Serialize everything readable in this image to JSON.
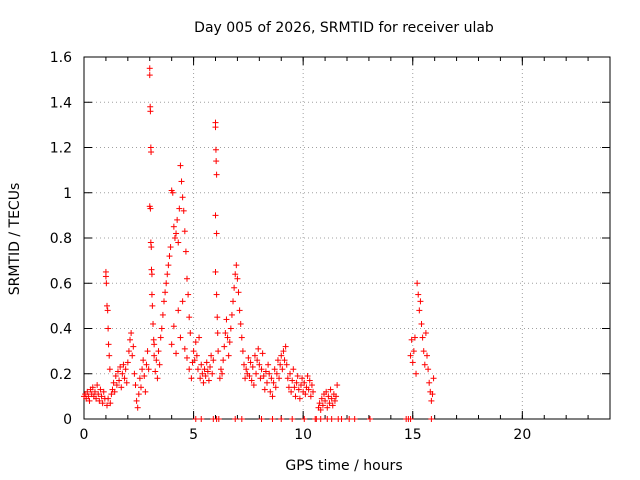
{
  "chart_data": {
    "type": "scatter",
    "title": "Day 005 of 2026, SRMTID for receiver ulab",
    "xlabel": "GPS time / hours",
    "ylabel": "SRMTID / TECUs",
    "xlim": [
      0,
      24
    ],
    "ylim": [
      0,
      1.6
    ],
    "x_ticks": [
      0,
      5,
      10,
      15,
      20
    ],
    "y_ticks": [
      0,
      0.2,
      0.4,
      0.6,
      0.8,
      1,
      1.2,
      1.4,
      1.6
    ],
    "x_tick_labels": [
      "0",
      "5",
      "10",
      "15",
      "20"
    ],
    "y_tick_labels": [
      "0",
      "0.2",
      "0.4",
      "0.6",
      "0.8",
      "1",
      "1.2",
      "1.4",
      "1.6"
    ],
    "grid": true,
    "legend": "none",
    "marker": "+",
    "colors": {
      "points": "#ff0000",
      "grid": "#a0a0a0",
      "axes": "#000000"
    },
    "series": [
      {
        "name": "SRMTID",
        "points": [
          [
            0.0,
            0.1
          ],
          [
            0.05,
            0.11
          ],
          [
            0.1,
            0.09
          ],
          [
            0.15,
            0.12
          ],
          [
            0.2,
            0.1
          ],
          [
            0.25,
            0.08
          ],
          [
            0.3,
            0.13
          ],
          [
            0.35,
            0.11
          ],
          [
            0.4,
            0.14
          ],
          [
            0.45,
            0.1
          ],
          [
            0.5,
            0.12
          ],
          [
            0.55,
            0.09
          ],
          [
            0.6,
            0.15
          ],
          [
            0.65,
            0.11
          ],
          [
            0.7,
            0.08
          ],
          [
            0.75,
            0.13
          ],
          [
            0.8,
            0.1
          ],
          [
            0.85,
            0.07
          ],
          [
            0.9,
            0.12
          ],
          [
            0.95,
            0.09
          ],
          [
            1.0,
            0.65
          ],
          [
            1.0,
            0.63
          ],
          [
            1.02,
            0.6
          ],
          [
            1.05,
            0.5
          ],
          [
            1.08,
            0.48
          ],
          [
            1.1,
            0.4
          ],
          [
            1.12,
            0.33
          ],
          [
            1.15,
            0.28
          ],
          [
            1.18,
            0.22
          ],
          [
            1.05,
            0.06
          ],
          [
            1.1,
            0.09
          ],
          [
            1.2,
            0.07
          ],
          [
            1.25,
            0.11
          ],
          [
            1.3,
            0.13
          ],
          [
            1.35,
            0.16
          ],
          [
            1.4,
            0.12
          ],
          [
            1.45,
            0.19
          ],
          [
            1.5,
            0.15
          ],
          [
            1.55,
            0.21
          ],
          [
            1.6,
            0.17
          ],
          [
            1.65,
            0.23
          ],
          [
            1.7,
            0.14
          ],
          [
            1.75,
            0.2
          ],
          [
            1.8,
            0.24
          ],
          [
            1.85,
            0.18
          ],
          [
            1.9,
            0.22
          ],
          [
            1.95,
            0.16
          ],
          [
            2.0,
            0.25
          ],
          [
            2.05,
            0.3
          ],
          [
            2.1,
            0.35
          ],
          [
            2.15,
            0.38
          ],
          [
            2.2,
            0.28
          ],
          [
            2.25,
            0.32
          ],
          [
            2.3,
            0.2
          ],
          [
            2.35,
            0.15
          ],
          [
            2.4,
            0.08
          ],
          [
            2.45,
            0.05
          ],
          [
            2.5,
            0.11
          ],
          [
            2.55,
            0.18
          ],
          [
            2.6,
            0.14
          ],
          [
            2.65,
            0.22
          ],
          [
            2.7,
            0.26
          ],
          [
            2.75,
            0.19
          ],
          [
            2.8,
            0.12
          ],
          [
            2.85,
            0.24
          ],
          [
            2.9,
            0.3
          ],
          [
            2.95,
            0.22
          ],
          [
            3.0,
            1.55
          ],
          [
            3.0,
            1.52
          ],
          [
            3.02,
            1.38
          ],
          [
            3.03,
            1.36
          ],
          [
            3.05,
            1.2
          ],
          [
            3.06,
            1.18
          ],
          [
            3.0,
            0.94
          ],
          [
            3.03,
            0.93
          ],
          [
            3.05,
            0.78
          ],
          [
            3.07,
            0.76
          ],
          [
            3.08,
            0.66
          ],
          [
            3.1,
            0.64
          ],
          [
            3.1,
            0.55
          ],
          [
            3.12,
            0.5
          ],
          [
            3.15,
            0.42
          ],
          [
            3.18,
            0.35
          ],
          [
            3.2,
            0.28
          ],
          [
            3.2,
            0.33
          ],
          [
            3.25,
            0.21
          ],
          [
            3.3,
            0.26
          ],
          [
            3.35,
            0.18
          ],
          [
            3.4,
            0.3
          ],
          [
            3.45,
            0.24
          ],
          [
            3.5,
            0.36
          ],
          [
            3.55,
            0.4
          ],
          [
            3.6,
            0.46
          ],
          [
            3.65,
            0.52
          ],
          [
            3.7,
            0.56
          ],
          [
            3.75,
            0.6
          ],
          [
            3.8,
            0.64
          ],
          [
            3.85,
            0.68
          ],
          [
            3.9,
            0.72
          ],
          [
            3.95,
            0.76
          ],
          [
            4.0,
            1.01
          ],
          [
            4.05,
            1.0
          ],
          [
            4.1,
            0.85
          ],
          [
            4.15,
            0.8
          ],
          [
            4.2,
            0.82
          ],
          [
            4.25,
            0.88
          ],
          [
            4.3,
            0.78
          ],
          [
            4.35,
            0.93
          ],
          [
            4.4,
            1.12
          ],
          [
            4.45,
            1.05
          ],
          [
            4.5,
            0.98
          ],
          [
            4.55,
            0.92
          ],
          [
            4.6,
            0.83
          ],
          [
            4.65,
            0.74
          ],
          [
            4.7,
            0.62
          ],
          [
            4.75,
            0.55
          ],
          [
            4.8,
            0.45
          ],
          [
            4.85,
            0.38
          ],
          [
            4.0,
            0.33
          ],
          [
            4.1,
            0.41
          ],
          [
            4.2,
            0.29
          ],
          [
            4.3,
            0.48
          ],
          [
            4.4,
            0.36
          ],
          [
            4.5,
            0.52
          ],
          [
            4.6,
            0.31
          ],
          [
            4.7,
            0.27
          ],
          [
            4.8,
            0.22
          ],
          [
            4.9,
            0.18
          ],
          [
            4.95,
            0.25
          ],
          [
            5.0,
            0.3
          ],
          [
            5.05,
            0.26
          ],
          [
            5.1,
            0.34
          ],
          [
            5.15,
            0.28
          ],
          [
            5.2,
            0.22
          ],
          [
            5.25,
            0.36
          ],
          [
            5.3,
            0.18
          ],
          [
            5.35,
            0.24
          ],
          [
            5.4,
            0.2
          ],
          [
            5.45,
            0.16
          ],
          [
            5.5,
            0.22
          ],
          [
            5.55,
            0.19
          ],
          [
            5.6,
            0.25
          ],
          [
            5.65,
            0.21
          ],
          [
            5.7,
            0.17
          ],
          [
            5.75,
            0.23
          ],
          [
            5.8,
            0.28
          ],
          [
            5.85,
            0.2
          ],
          [
            5.9,
            0.26
          ],
          [
            6.0,
            1.31
          ],
          [
            6.0,
            1.29
          ],
          [
            6.02,
            1.19
          ],
          [
            6.03,
            1.14
          ],
          [
            6.05,
            1.08
          ],
          [
            6.0,
            0.9
          ],
          [
            6.05,
            0.82
          ],
          [
            6.0,
            0.65
          ],
          [
            6.05,
            0.55
          ],
          [
            6.08,
            0.45
          ],
          [
            6.1,
            0.38
          ],
          [
            6.12,
            0.3
          ],
          [
            6.2,
            0.18
          ],
          [
            6.25,
            0.22
          ],
          [
            6.3,
            0.2
          ],
          [
            6.35,
            0.26
          ],
          [
            6.4,
            0.32
          ],
          [
            6.45,
            0.38
          ],
          [
            6.5,
            0.44
          ],
          [
            6.55,
            0.36
          ],
          [
            6.6,
            0.28
          ],
          [
            6.65,
            0.34
          ],
          [
            6.7,
            0.4
          ],
          [
            6.75,
            0.46
          ],
          [
            6.8,
            0.52
          ],
          [
            6.85,
            0.58
          ],
          [
            6.9,
            0.64
          ],
          [
            6.95,
            0.68
          ],
          [
            7.0,
            0.62
          ],
          [
            7.05,
            0.56
          ],
          [
            7.1,
            0.48
          ],
          [
            7.15,
            0.42
          ],
          [
            7.2,
            0.36
          ],
          [
            7.25,
            0.3
          ],
          [
            7.3,
            0.24
          ],
          [
            7.35,
            0.18
          ],
          [
            7.4,
            0.22
          ],
          [
            7.45,
            0.2
          ],
          [
            7.5,
            0.27
          ],
          [
            7.55,
            0.19
          ],
          [
            7.6,
            0.25
          ],
          [
            7.65,
            0.17
          ],
          [
            7.7,
            0.23
          ],
          [
            7.75,
            0.15
          ],
          [
            7.8,
            0.28
          ],
          [
            7.85,
            0.2
          ],
          [
            7.9,
            0.26
          ],
          [
            7.95,
            0.31
          ],
          [
            8.0,
            0.24
          ],
          [
            8.05,
            0.18
          ],
          [
            8.1,
            0.22
          ],
          [
            8.15,
            0.29
          ],
          [
            8.2,
            0.19
          ],
          [
            8.25,
            0.13
          ],
          [
            8.3,
            0.21
          ],
          [
            8.35,
            0.16
          ],
          [
            8.4,
            0.24
          ],
          [
            8.45,
            0.2
          ],
          [
            8.5,
            0.12
          ],
          [
            8.55,
            0.18
          ],
          [
            8.6,
            0.1
          ],
          [
            8.65,
            0.16
          ],
          [
            8.7,
            0.22
          ],
          [
            8.75,
            0.14
          ],
          [
            8.8,
            0.2
          ],
          [
            8.85,
            0.26
          ],
          [
            8.9,
            0.18
          ],
          [
            8.95,
            0.24
          ],
          [
            9.0,
            0.28
          ],
          [
            9.05,
            0.22
          ],
          [
            9.1,
            0.3
          ],
          [
            9.15,
            0.26
          ],
          [
            9.2,
            0.32
          ],
          [
            9.25,
            0.24
          ],
          [
            9.3,
            0.18
          ],
          [
            9.35,
            0.14
          ],
          [
            9.4,
            0.2
          ],
          [
            9.45,
            0.12
          ],
          [
            9.5,
            0.17
          ],
          [
            9.55,
            0.22
          ],
          [
            9.6,
            0.14
          ],
          [
            9.65,
            0.1
          ],
          [
            9.7,
            0.16
          ],
          [
            9.75,
            0.19
          ],
          [
            9.8,
            0.13
          ],
          [
            9.85,
            0.09
          ],
          [
            9.9,
            0.15
          ],
          [
            9.95,
            0.18
          ],
          [
            10.0,
            0.12
          ],
          [
            10.05,
            0.16
          ],
          [
            10.1,
            0.11
          ],
          [
            10.15,
            0.14
          ],
          [
            10.2,
            0.19
          ],
          [
            10.25,
            0.13
          ],
          [
            10.3,
            0.17
          ],
          [
            10.35,
            0.1
          ],
          [
            10.4,
            0.15
          ],
          [
            10.45,
            0.12
          ],
          [
            10.7,
            0.05
          ],
          [
            10.75,
            0.07
          ],
          [
            10.8,
            0.04
          ],
          [
            10.85,
            0.09
          ],
          [
            10.9,
            0.06
          ],
          [
            10.95,
            0.11
          ],
          [
            11.0,
            0.08
          ],
          [
            11.05,
            0.12
          ],
          [
            11.1,
            0.05
          ],
          [
            11.15,
            0.1
          ],
          [
            11.2,
            0.07
          ],
          [
            11.25,
            0.13
          ],
          [
            11.3,
            0.09
          ],
          [
            11.35,
            0.06
          ],
          [
            11.4,
            0.11
          ],
          [
            11.45,
            0.08
          ],
          [
            11.5,
            0.1
          ],
          [
            11.55,
            0.15
          ],
          [
            14.9,
            0.28
          ],
          [
            14.95,
            0.35
          ],
          [
            15.0,
            0.25
          ],
          [
            15.05,
            0.3
          ],
          [
            15.1,
            0.36
          ],
          [
            15.15,
            0.2
          ],
          [
            15.2,
            0.6
          ],
          [
            15.25,
            0.55
          ],
          [
            15.3,
            0.48
          ],
          [
            15.35,
            0.52
          ],
          [
            15.4,
            0.42
          ],
          [
            15.45,
            0.36
          ],
          [
            15.5,
            0.3
          ],
          [
            15.55,
            0.24
          ],
          [
            15.6,
            0.38
          ],
          [
            15.65,
            0.28
          ],
          [
            15.7,
            0.22
          ],
          [
            15.75,
            0.16
          ],
          [
            15.8,
            0.12
          ],
          [
            15.85,
            0.08
          ],
          [
            15.9,
            0.11
          ],
          [
            15.95,
            0.18
          ],
          [
            5.1,
            0.0
          ],
          [
            5.35,
            0.0
          ],
          [
            5.9,
            0.0
          ],
          [
            6.05,
            0.0
          ],
          [
            6.15,
            0.0
          ],
          [
            6.9,
            0.0
          ],
          [
            7.2,
            0.0
          ],
          [
            8.1,
            0.0
          ],
          [
            8.6,
            0.0
          ],
          [
            9.0,
            0.0
          ],
          [
            9.5,
            0.0
          ],
          [
            10.05,
            0.0
          ],
          [
            10.55,
            0.0
          ],
          [
            10.6,
            0.0
          ],
          [
            10.8,
            0.0
          ],
          [
            11.1,
            0.0
          ],
          [
            11.3,
            0.0
          ],
          [
            11.6,
            0.0
          ],
          [
            11.75,
            0.0
          ],
          [
            12.1,
            0.0
          ],
          [
            12.35,
            0.0
          ],
          [
            13.05,
            0.0
          ],
          [
            14.7,
            0.0
          ],
          [
            14.8,
            0.0
          ],
          [
            14.9,
            0.0
          ],
          [
            15.85,
            0.0
          ]
        ]
      }
    ]
  }
}
